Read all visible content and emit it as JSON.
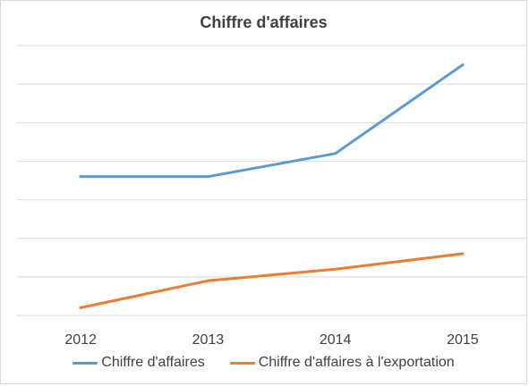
{
  "chart_data": {
    "type": "line",
    "title": "Chiffre d'affaires",
    "categories": [
      "2012",
      "2013",
      "2014",
      "2015"
    ],
    "series": [
      {
        "name": "Chiffre d'affaires",
        "values": [
          3.6,
          3.6,
          4.2,
          6.5
        ],
        "color": "#5b9bd5"
      },
      {
        "name": "Chiffre d'affaires à l'exportation",
        "values": [
          0.2,
          0.9,
          1.2,
          1.6
        ],
        "color": "#ed7d31"
      }
    ],
    "ylim": [
      0,
      7
    ],
    "grid": true,
    "y_tick_labels_shown": false,
    "legend_position": "bottom",
    "gridline_color": "#d9d9d9"
  }
}
